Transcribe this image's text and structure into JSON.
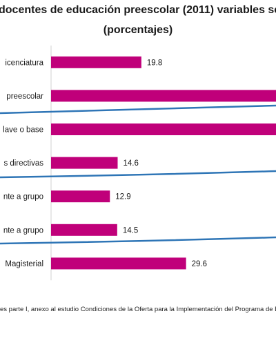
{
  "chart_data": {
    "type": "bar",
    "orientation": "horizontal",
    "title_line1": "docentes de educación preescolar (2011) variables se",
    "title_line2": "(porcentajes)",
    "categories": [
      "icenciatura",
      "preescolar",
      "lave o base",
      "s directivas",
      "nte a grupo",
      "nte a grupo",
      "Magisterial"
    ],
    "values": [
      19.8,
      null,
      null,
      14.6,
      12.9,
      14.5,
      29.6
    ],
    "value_labels": [
      "19.8",
      "",
      "",
      "14.6",
      "12.9",
      "14.5",
      "29.6"
    ],
    "bar_color": "#c0007a",
    "separator_color": "#2e75b6",
    "xlim": [
      0,
      60
    ],
    "grid": false,
    "legend": "none",
    "footnote": "es parte I, anexo al estudio Condiciones de la Oferta para la Implementación del Programa de E"
  }
}
